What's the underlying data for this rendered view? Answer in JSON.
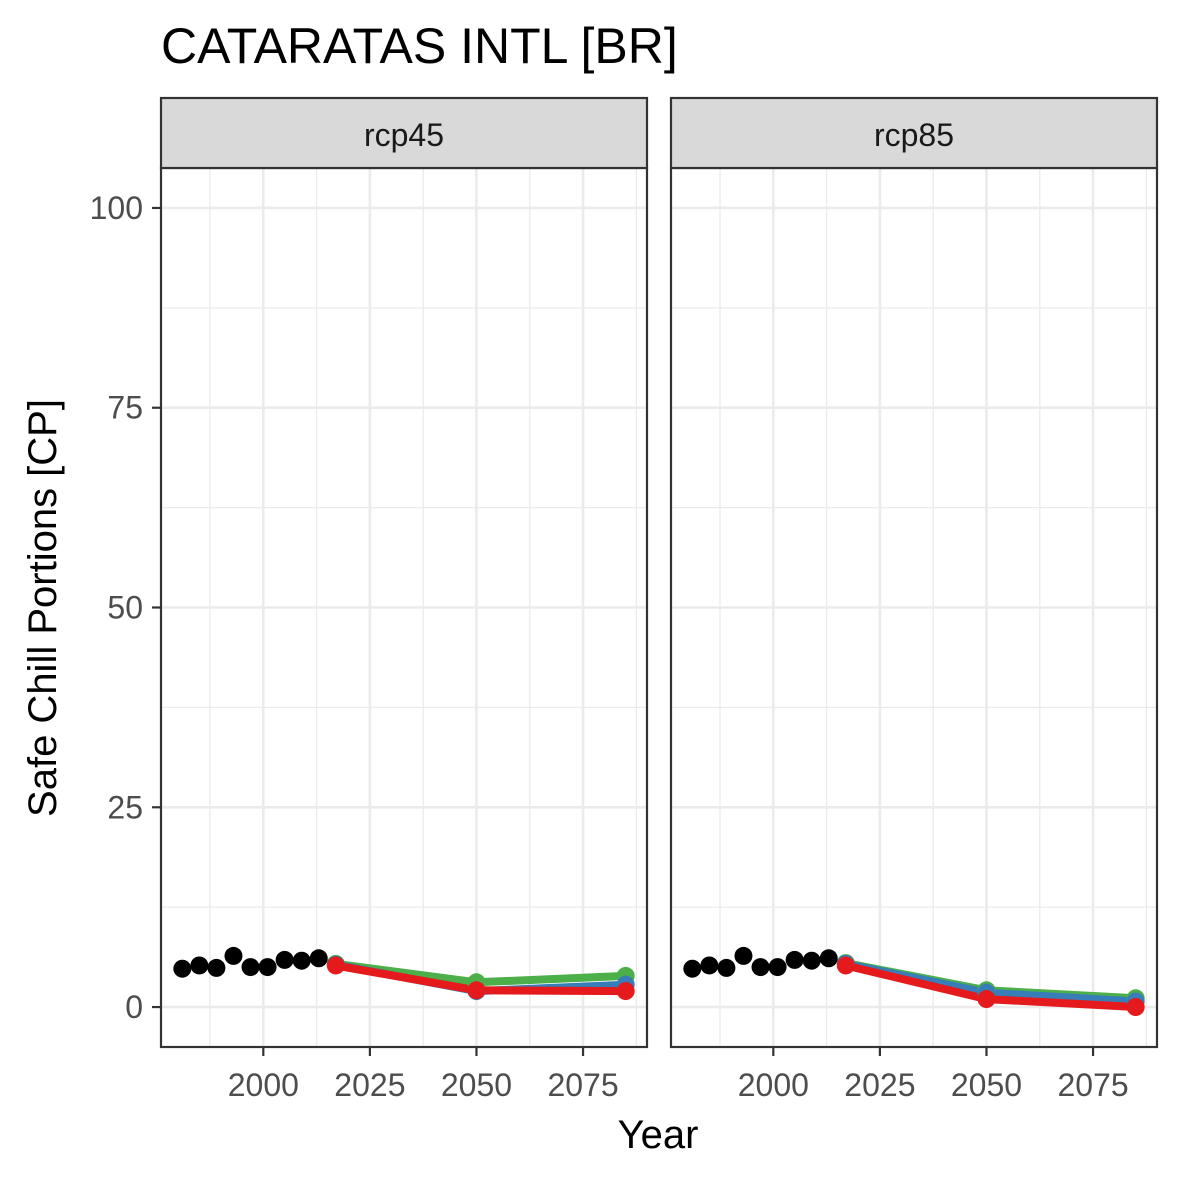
{
  "chart_data": {
    "type": "line",
    "title": "CATARATAS INTL [BR]",
    "xlabel": "Year",
    "ylabel": "Safe Chill Portions [CP]",
    "xlim": [
      1976,
      2090
    ],
    "ylim": [
      -5,
      105
    ],
    "x_ticks": [
      2000,
      2025,
      2050,
      2075
    ],
    "y_ticks": [
      0,
      25,
      50,
      75,
      100
    ],
    "grid": true,
    "legend": "none",
    "colors": {
      "historic": "#000000",
      "green": "#4DAF4A",
      "blue": "#377EB8",
      "red": "#E41A1C",
      "strip_fill": "#D9D9D9",
      "grid": "#EBEBEB",
      "panel_border": "#333333"
    },
    "panels": [
      {
        "label": "rcp45",
        "historic_points": [
          {
            "x": 1981,
            "y": 4.8
          },
          {
            "x": 1985,
            "y": 5.2
          },
          {
            "x": 1989,
            "y": 4.9
          },
          {
            "x": 1993,
            "y": 6.4
          },
          {
            "x": 1997,
            "y": 5.0
          },
          {
            "x": 2001,
            "y": 5.0
          },
          {
            "x": 2005,
            "y": 5.9
          },
          {
            "x": 2009,
            "y": 5.8
          },
          {
            "x": 2013,
            "y": 6.1
          }
        ],
        "series": [
          {
            "color": "green",
            "x": [
              2017,
              2050,
              2085
            ],
            "y": [
              5.4,
              3.1,
              3.9
            ]
          },
          {
            "color": "blue",
            "x": [
              2017,
              2050,
              2085
            ],
            "y": [
              5.3,
              2.0,
              2.8
            ]
          },
          {
            "color": "red",
            "x": [
              2017,
              2050,
              2085
            ],
            "y": [
              5.2,
              2.1,
              2.0
            ]
          }
        ]
      },
      {
        "label": "rcp85",
        "historic_points": [
          {
            "x": 1981,
            "y": 4.8
          },
          {
            "x": 1985,
            "y": 5.2
          },
          {
            "x": 1989,
            "y": 4.9
          },
          {
            "x": 1993,
            "y": 6.4
          },
          {
            "x": 1997,
            "y": 5.0
          },
          {
            "x": 2001,
            "y": 5.0
          },
          {
            "x": 2005,
            "y": 5.9
          },
          {
            "x": 2009,
            "y": 5.8
          },
          {
            "x": 2013,
            "y": 6.1
          }
        ],
        "series": [
          {
            "color": "green",
            "x": [
              2017,
              2050,
              2085
            ],
            "y": [
              5.5,
              2.1,
              1.1
            ]
          },
          {
            "color": "blue",
            "x": [
              2017,
              2050,
              2085
            ],
            "y": [
              5.4,
              1.8,
              0.7
            ]
          },
          {
            "color": "red",
            "x": [
              2017,
              2050,
              2085
            ],
            "y": [
              5.2,
              1.0,
              0.0
            ]
          }
        ]
      }
    ]
  }
}
